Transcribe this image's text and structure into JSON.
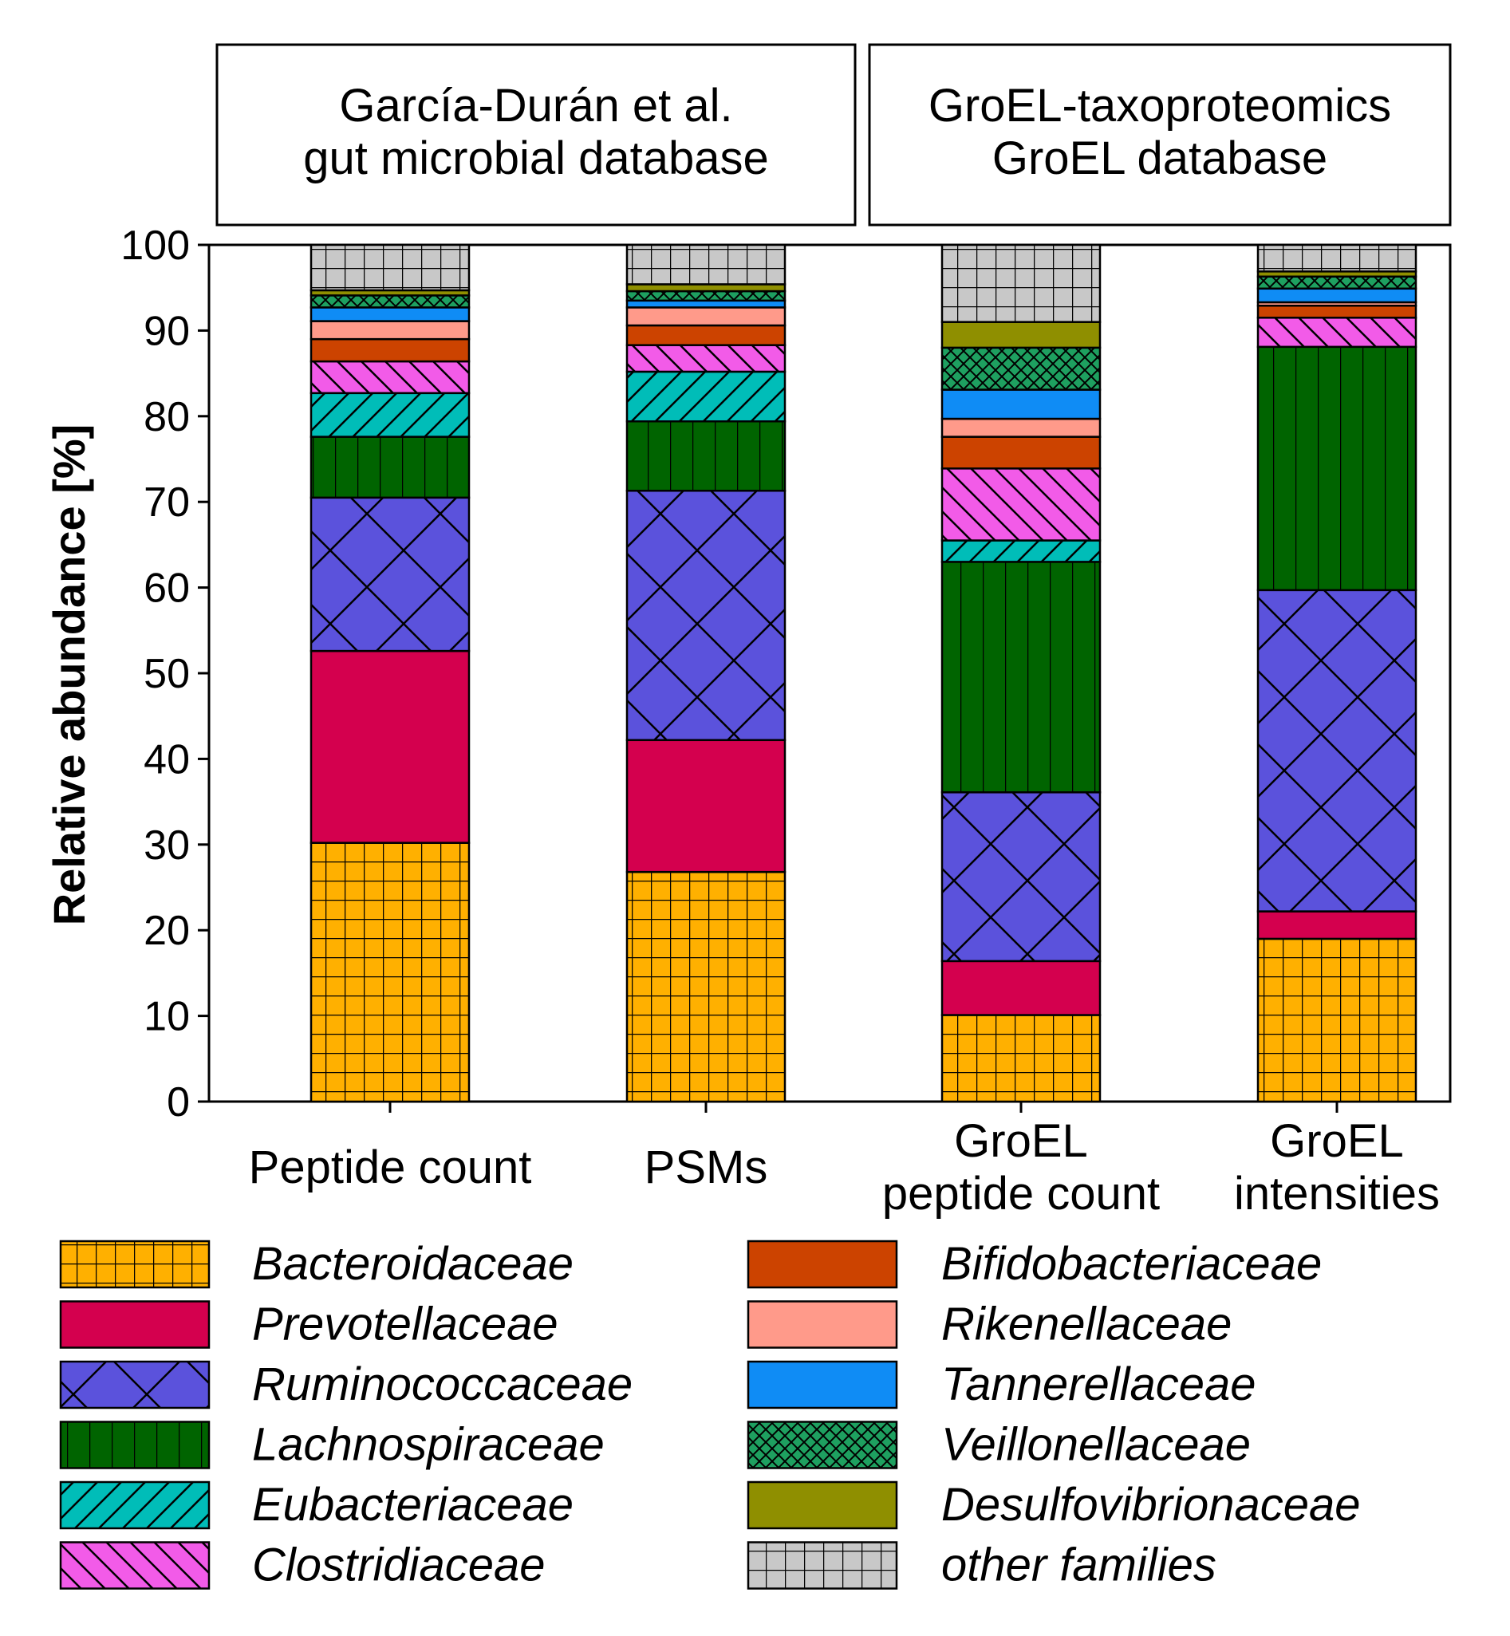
{
  "chart_data": {
    "type": "bar",
    "stacked": true,
    "panels": [
      {
        "label_lines": [
          "García-Durán et al.",
          "gut microbial database"
        ]
      },
      {
        "label_lines": [
          "GroEL-taxoproteomics",
          "GroEL database"
        ]
      }
    ],
    "categories": [
      {
        "lines": [
          "Peptide count"
        ]
      },
      {
        "lines": [
          "PSMs"
        ]
      },
      {
        "lines": [
          "GroEL",
          "peptide count"
        ]
      },
      {
        "lines": [
          "GroEL",
          "intensities"
        ]
      }
    ],
    "ylabel": "Relative abundance [%]",
    "ylim": [
      0,
      100
    ],
    "yticks": [
      0,
      10,
      20,
      30,
      40,
      50,
      60,
      70,
      80,
      90,
      100
    ],
    "series": [
      {
        "name": "Bacteroidaceae",
        "color": "#FFB000",
        "pattern": "grid",
        "values": [
          30.2,
          26.8,
          10.1,
          19.0
        ]
      },
      {
        "name": "Prevotellaceae",
        "color": "#D4004E",
        "pattern": "none",
        "values": [
          22.4,
          15.4,
          6.3,
          3.2
        ]
      },
      {
        "name": "Ruminococcaceae",
        "color": "#5B52DC",
        "pattern": "diamond",
        "values": [
          17.9,
          29.1,
          19.7,
          37.5
        ]
      },
      {
        "name": "Lachnospiraceae",
        "color": "#006400",
        "pattern": "vertical",
        "values": [
          7.1,
          8.1,
          26.9,
          28.4
        ]
      },
      {
        "name": "Eubacteriaceae",
        "color": "#00BDB8",
        "pattern": "diag-forward",
        "values": [
          5.1,
          5.8,
          2.5,
          0.0
        ]
      },
      {
        "name": "Clostridiaceae",
        "color": "#F25BE8",
        "pattern": "diag-back",
        "values": [
          3.7,
          3.1,
          8.4,
          3.4
        ]
      },
      {
        "name": "Bifidobacteriaceae",
        "color": "#CC4300",
        "pattern": "none",
        "values": [
          2.6,
          2.3,
          3.7,
          1.4
        ]
      },
      {
        "name": "Rikenellaceae",
        "color": "#FF9A8A",
        "pattern": "none",
        "values": [
          2.1,
          2.1,
          2.1,
          0.4
        ]
      },
      {
        "name": "Tannerellaceae",
        "color": "#0F8CF5",
        "pattern": "none",
        "values": [
          1.6,
          0.8,
          3.4,
          1.6
        ]
      },
      {
        "name": "Veillonellaceae",
        "color": "#1EA060",
        "pattern": "crosshatch",
        "values": [
          1.4,
          1.1,
          4.9,
          1.4
        ]
      },
      {
        "name": "Desulfovibrionaceae",
        "color": "#8F8F00",
        "pattern": "none",
        "values": [
          0.6,
          0.8,
          3.0,
          0.6
        ]
      },
      {
        "name": "other families",
        "color": "#C8C8C8",
        "pattern": "grid",
        "values": [
          5.3,
          4.6,
          9.0,
          3.1
        ]
      }
    ],
    "legend_placement": "bottom",
    "grid": false
  }
}
